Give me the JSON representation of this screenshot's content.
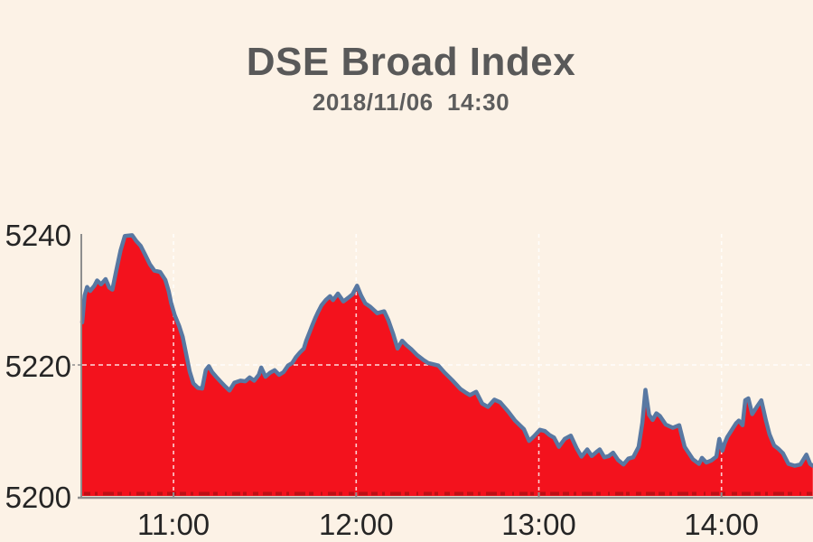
{
  "header": {
    "title": "DSE Broad Index",
    "subtitle": "2018/11/06  14:30"
  },
  "chart_data": {
    "type": "area",
    "title": "DSE Broad Index",
    "timestamp": "2018/11/06  14:30",
    "grid": "dashed, white over fill",
    "legend": "none",
    "x_axis": {
      "label": "",
      "start_time": "10:30",
      "end_time": "14:30",
      "tick_labels": [
        "11:00",
        "12:00",
        "13:00",
        "14:00"
      ],
      "tick_minutes_from_start": [
        30,
        90,
        150,
        210
      ],
      "total_minutes": 240
    },
    "y_axis": {
      "label": "",
      "tick_labels": [
        "5240",
        "5220",
        "5200"
      ],
      "tick_values": [
        5240,
        5220,
        5200
      ],
      "ylim": [
        5200,
        5243
      ]
    },
    "series": [
      {
        "name": "DSE Broad Index",
        "points_minутes_note": "each point = [minutes after 10:30, index value]",
        "points": [
          [
            0,
            5226.5
          ],
          [
            0.8,
            5230.6
          ],
          [
            1.6,
            5231.9
          ],
          [
            2.6,
            5231.3
          ],
          [
            4,
            5232.1
          ],
          [
            4.9,
            5232.9
          ],
          [
            6.2,
            5232.3
          ],
          [
            7.7,
            5233.1
          ],
          [
            8.9,
            5231.8
          ],
          [
            9.9,
            5231.5
          ],
          [
            11.2,
            5234.4
          ],
          [
            12.6,
            5237.5
          ],
          [
            14,
            5239.7
          ],
          [
            16.4,
            5239.8
          ],
          [
            17.8,
            5238.9
          ],
          [
            19.2,
            5238.2
          ],
          [
            20.7,
            5236.8
          ],
          [
            22.2,
            5235.4
          ],
          [
            23.7,
            5234.4
          ],
          [
            25.6,
            5234.2
          ],
          [
            27.3,
            5233
          ],
          [
            28.4,
            5231.3
          ],
          [
            29.2,
            5229.5
          ],
          [
            30.4,
            5227.6
          ],
          [
            31.8,
            5226
          ],
          [
            33,
            5224.3
          ],
          [
            34.2,
            5221.5
          ],
          [
            35.3,
            5219
          ],
          [
            36.5,
            5217.2
          ],
          [
            38,
            5216.5
          ],
          [
            39.4,
            5216.4
          ],
          [
            40.6,
            5219.2
          ],
          [
            41.6,
            5219.8
          ],
          [
            42.7,
            5218.9
          ],
          [
            44,
            5218.2
          ],
          [
            45.8,
            5217.3
          ],
          [
            47,
            5216.7
          ],
          [
            48.4,
            5216.1
          ],
          [
            50,
            5217.3
          ],
          [
            52,
            5217.6
          ],
          [
            53.6,
            5217.5
          ],
          [
            55,
            5218.1
          ],
          [
            56.5,
            5217.6
          ],
          [
            58,
            5218.5
          ],
          [
            58.8,
            5219.6
          ],
          [
            60.2,
            5218.2
          ],
          [
            61.7,
            5218.8
          ],
          [
            63.2,
            5219.2
          ],
          [
            64.7,
            5218.5
          ],
          [
            66.1,
            5218.9
          ],
          [
            67.6,
            5219.9
          ],
          [
            69,
            5220.3
          ],
          [
            70.2,
            5221.2
          ],
          [
            71.5,
            5221.9
          ],
          [
            72.8,
            5222.5
          ],
          [
            73.6,
            5223.7
          ],
          [
            74.7,
            5225
          ],
          [
            75.6,
            5226.1
          ],
          [
            76.6,
            5227.2
          ],
          [
            77.6,
            5228.2
          ],
          [
            78.6,
            5229.1
          ],
          [
            80,
            5229.9
          ],
          [
            81.4,
            5230.5
          ],
          [
            82.4,
            5229.9
          ],
          [
            84,
            5230.9
          ],
          [
            85.8,
            5229.7
          ],
          [
            87.2,
            5230.2
          ],
          [
            88.8,
            5230.8
          ],
          [
            90.3,
            5232.1
          ],
          [
            91.6,
            5230.6
          ],
          [
            93,
            5229.4
          ],
          [
            94.6,
            5228.9
          ],
          [
            96.9,
            5227.9
          ],
          [
            99.2,
            5228.2
          ],
          [
            100.6,
            5226.8
          ],
          [
            102.1,
            5224.8
          ],
          [
            103.6,
            5222.5
          ],
          [
            105.1,
            5223.7
          ],
          [
            106.6,
            5223
          ],
          [
            108.1,
            5222.4
          ],
          [
            110,
            5221.5
          ],
          [
            112,
            5220.8
          ],
          [
            113.6,
            5220.3
          ],
          [
            115.4,
            5220.1
          ],
          [
            117,
            5219.9
          ],
          [
            119.1,
            5218.8
          ],
          [
            121.5,
            5217.7
          ],
          [
            124.3,
            5216.3
          ],
          [
            125.9,
            5215.8
          ],
          [
            127.4,
            5215.4
          ],
          [
            129.4,
            5215.9
          ],
          [
            131.4,
            5214.1
          ],
          [
            133.3,
            5213.6
          ],
          [
            135.4,
            5214.7
          ],
          [
            137.3,
            5214.3
          ],
          [
            139.9,
            5212.9
          ],
          [
            142.2,
            5211.5
          ],
          [
            145.1,
            5210.2
          ],
          [
            146.8,
            5208.4
          ],
          [
            148.4,
            5209.1
          ],
          [
            150.4,
            5210.1
          ],
          [
            152,
            5209.9
          ],
          [
            153.5,
            5209.3
          ],
          [
            155,
            5208.9
          ],
          [
            156.6,
            5207.5
          ],
          [
            158.5,
            5208.7
          ],
          [
            160.5,
            5209.2
          ],
          [
            162.4,
            5207.3
          ],
          [
            164,
            5206
          ],
          [
            165.9,
            5207.1
          ],
          [
            167.4,
            5206.1
          ],
          [
            168.9,
            5206.7
          ],
          [
            170,
            5207.1
          ],
          [
            171.5,
            5205.9
          ],
          [
            173,
            5206.1
          ],
          [
            174.4,
            5206.6
          ],
          [
            176,
            5205.5
          ],
          [
            177.8,
            5204.8
          ],
          [
            179.4,
            5205.7
          ],
          [
            181,
            5205.9
          ],
          [
            182.8,
            5207.5
          ],
          [
            184,
            5211.2
          ],
          [
            185,
            5216.2
          ],
          [
            186.2,
            5212.4
          ],
          [
            187.4,
            5211.6
          ],
          [
            188.6,
            5212.6
          ],
          [
            189.8,
            5212.2
          ],
          [
            191.7,
            5210.9
          ],
          [
            194,
            5210.4
          ],
          [
            196.1,
            5210.8
          ],
          [
            197.9,
            5207.5
          ],
          [
            200.6,
            5205.6
          ],
          [
            202.6,
            5204.9
          ],
          [
            203.6,
            5205.8
          ],
          [
            205,
            5205.1
          ],
          [
            206.6,
            5205.4
          ],
          [
            208.3,
            5206
          ],
          [
            209.3,
            5208.7
          ],
          [
            210.3,
            5206.9
          ],
          [
            211,
            5208
          ],
          [
            211.9,
            5209
          ],
          [
            213.3,
            5210
          ],
          [
            214.8,
            5211.1
          ],
          [
            215.7,
            5211.5
          ],
          [
            216.9,
            5210.8
          ],
          [
            217.8,
            5214.6
          ],
          [
            218.8,
            5214.9
          ],
          [
            220.1,
            5212.5
          ],
          [
            221.6,
            5213.6
          ],
          [
            223.1,
            5214.6
          ],
          [
            224.6,
            5211.5
          ],
          [
            225.8,
            5209.4
          ],
          [
            227.3,
            5207.7
          ],
          [
            228.7,
            5207.2
          ],
          [
            230.2,
            5206.5
          ],
          [
            232,
            5204.9
          ],
          [
            234.1,
            5204.6
          ],
          [
            235.9,
            5204.8
          ],
          [
            237.9,
            5206.3
          ],
          [
            239.1,
            5204.9
          ],
          [
            240,
            5204.6
          ]
        ]
      }
    ],
    "colors": {
      "background": "#FCF2E6",
      "area_fill": "#F3121D",
      "line": "#5878A2",
      "axis": "#8E8E8E",
      "gridline": "#FFFFFF",
      "volume_ticks": "#BC1016",
      "title_text": "#595959",
      "tick_text": "#252525"
    }
  }
}
